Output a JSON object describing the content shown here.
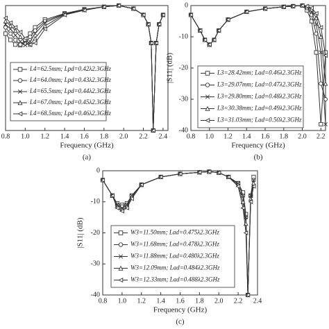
{
  "chart_data": [
    {
      "type": "line",
      "title": "(a)",
      "x_label": "Frequency (GHz)",
      "xlim": [
        0.8,
        2.45
      ],
      "ylim": [
        -40,
        0
      ],
      "xticks": [
        0.8,
        {
          "value": 1,
          "label": "1.0"
        },
        1.2,
        1.4,
        1.6,
        1.8,
        {
          "value": 2,
          "label": "2.0"
        },
        2.2,
        2.4
      ],
      "x": [
        0.8,
        0.85,
        0.9,
        0.95,
        1.0,
        1.05,
        1.1,
        1.2,
        1.4,
        1.6,
        1.8,
        1.95,
        2.1,
        2.2,
        2.25,
        2.28,
        2.3,
        2.33,
        2.36,
        2.4
      ],
      "series": [
        {
          "name": "L4=62.5mm; Lpd=0.42λ2.3GHz",
          "marker": "square",
          "color": "#333333",
          "values": [
            -9,
            -11,
            -12.5,
            -12.7,
            -11,
            -9,
            -7,
            -4.5,
            -2.5,
            -1.2,
            -0.4,
            0,
            -1,
            -3,
            -6,
            -12,
            -40,
            -12,
            -6,
            -3
          ]
        },
        {
          "name": "L4=64.0mm; Lpd=0.43λ2.3GHz",
          "marker": "circle",
          "color": "#333333",
          "values": [
            -7,
            -9,
            -11,
            -12.5,
            -12,
            -10,
            -8,
            -5,
            -2.6,
            -1.3,
            -0.4,
            0,
            -1,
            -3,
            -6,
            -12,
            -40,
            -12,
            -6,
            -3
          ]
        },
        {
          "name": "L4=65.5mm; Lpd=0.44λ2.3GHz",
          "marker": "x",
          "color": "#333333",
          "values": [
            -6,
            -7.5,
            -9.5,
            -11.5,
            -12.7,
            -11.5,
            -9,
            -5.5,
            -2.7,
            -1.3,
            -0.4,
            0,
            -1,
            -3,
            -6,
            -12,
            -40,
            -12,
            -6,
            -3
          ]
        },
        {
          "name": "L4=67.0mm; Lpd=0.45λ2.3GHz",
          "marker": "triangle-up",
          "color": "#333333",
          "values": [
            -5,
            -6.5,
            -8,
            -10,
            -12,
            -12.5,
            -10.5,
            -6.5,
            -2.8,
            -1.4,
            -0.4,
            0,
            -1,
            -3,
            -6,
            -12,
            -40,
            -12,
            -6,
            -3
          ]
        },
        {
          "name": "L4=68.5mm; Lpd=0.46λ2.3GHz",
          "marker": "triangle-left",
          "color": "#333333",
          "values": [
            -4,
            -5.5,
            -7,
            -8.5,
            -10.5,
            -12.5,
            -12,
            -7.5,
            -3,
            -1.5,
            -0.4,
            0,
            -1,
            -3,
            -6,
            -12,
            -40,
            -12,
            -6,
            -3
          ]
        }
      ]
    },
    {
      "type": "line",
      "title": "(b)",
      "x_label": "Frequency (GHz)",
      "y_label": "|S11| (dB)",
      "xlim": [
        0.8,
        2.25
      ],
      "ylim": [
        -40,
        0
      ],
      "xticks": [
        0.8,
        {
          "value": 1,
          "label": "1.0"
        },
        1.2,
        1.4,
        1.6,
        1.8,
        {
          "value": 2,
          "label": "2.0"
        },
        2.2
      ],
      "yticks": [
        0,
        -10,
        -20,
        -30,
        -40
      ],
      "x": [
        0.8,
        0.9,
        0.95,
        1.0,
        1.05,
        1.1,
        1.2,
        1.4,
        1.6,
        1.8,
        1.9,
        2.0,
        2.05,
        2.1,
        2.15,
        2.2,
        2.25
      ],
      "series": [
        {
          "name": "L3=28.42mm; Lad=0.46λ2.3GHz",
          "marker": "square",
          "color": "#333333",
          "values": [
            -3,
            -8,
            -11,
            -12.5,
            -11,
            -8,
            -4.5,
            -2,
            -1,
            -0.4,
            -0.2,
            0,
            -1.5,
            -5,
            -15,
            -38,
            -15
          ]
        },
        {
          "name": "L3=29.07mm; Lad=0.47λ2.3GHz",
          "marker": "circle",
          "color": "#333333",
          "values": [
            -3,
            -8,
            -11,
            -12.5,
            -11,
            -8,
            -4.5,
            -2,
            -1,
            -0.4,
            -0.2,
            0,
            -0.8,
            -3,
            -9,
            -25,
            -30
          ]
        },
        {
          "name": "L3=29.80mm; Lad=0.48λ2.3GHz",
          "marker": "x",
          "color": "#333333",
          "values": [
            -3,
            -8,
            -11,
            -12.5,
            -11,
            -8,
            -4.5,
            -2,
            -1,
            -0.4,
            -0.2,
            0,
            -0.5,
            -2,
            -6,
            -15,
            -38
          ]
        },
        {
          "name": "L3=30.38mm; Lad=0.49λ2.3GHz",
          "marker": "triangle-up",
          "color": "#333333",
          "values": [
            -3,
            -8,
            -11,
            -12.5,
            -11,
            -8,
            -4.5,
            -2,
            -1,
            -0.4,
            -0.2,
            0,
            -0.3,
            -1.2,
            -4,
            -10,
            -25
          ]
        },
        {
          "name": "L3=31.03mm; Lad=0.50λ2.3GHz",
          "marker": "triangle-left",
          "color": "#333333",
          "values": [
            -3,
            -8,
            -11,
            -12.5,
            -11,
            -8,
            -4.5,
            -2,
            -1,
            -0.4,
            -0.2,
            0,
            -0.2,
            -0.8,
            -2.5,
            -7,
            -16
          ]
        }
      ]
    },
    {
      "type": "line",
      "title": "(c)",
      "x_label": "Frequency (GHz)",
      "y_label": "|S11| (dB)",
      "xlim": [
        0.8,
        2.4
      ],
      "ylim": [
        -40,
        0
      ],
      "xticks": [
        0.8,
        {
          "value": 1,
          "label": "1.0"
        },
        1.2,
        1.4,
        1.6,
        1.8,
        {
          "value": 2,
          "label": "2.0"
        },
        2.2,
        2.4
      ],
      "yticks": [
        0,
        -10,
        -20,
        -30,
        -40
      ],
      "x": [
        0.8,
        0.9,
        0.95,
        1.0,
        1.05,
        1.1,
        1.2,
        1.4,
        1.6,
        1.8,
        1.9,
        2.0,
        2.1,
        2.2,
        2.25,
        2.28,
        2.3,
        2.33,
        2.36
      ],
      "series": [
        {
          "name": "W3=11.50mm; Lad=0.475λ2.3GHz",
          "marker": "square",
          "color": "#333333",
          "values": [
            -3,
            -8,
            -10.5,
            -11,
            -10.5,
            -8,
            -4.5,
            -2,
            -1,
            -0.5,
            -0.3,
            -0.6,
            -2,
            -4,
            -7,
            -14,
            -40,
            -8,
            -2
          ]
        },
        {
          "name": "W3=11.68mm; Lad=0.478λ2.3GHz",
          "marker": "circle",
          "color": "#333333",
          "values": [
            -3,
            -8,
            -11,
            -11.5,
            -11,
            -8,
            -4.5,
            -2,
            -1,
            -0.5,
            -0.3,
            -0.6,
            -2,
            -4,
            -8,
            -15,
            -40,
            -8,
            -3
          ]
        },
        {
          "name": "W3=11.88mm; Lad=0.480λ2.3GHz",
          "marker": "x",
          "color": "#333333",
          "values": [
            -3,
            -8,
            -11,
            -12,
            -11,
            -8,
            -4.5,
            -2,
            -1,
            -0.5,
            -0.3,
            -0.6,
            -2,
            -4,
            -8,
            -15,
            -40,
            -8,
            -3
          ]
        },
        {
          "name": "W3=12.09mm; Lad=0.484λ2.3GHz",
          "marker": "triangle-up",
          "color": "#333333",
          "values": [
            -3,
            -8,
            -11.5,
            -12.5,
            -11.5,
            -8.5,
            -4.5,
            -2,
            -1,
            -0.5,
            -0.3,
            -0.6,
            -2,
            -4.5,
            -10,
            -17,
            -40,
            -9,
            -4
          ]
        },
        {
          "name": "W3=12.33mm; Lad=0.488λ2.3GHz",
          "marker": "triangle-left",
          "color": "#333333",
          "values": [
            -3,
            -8,
            -12,
            -13,
            -12,
            -9,
            -4.5,
            -2,
            -1,
            -0.5,
            -0.3,
            -0.6,
            -2,
            -5,
            -12,
            -20,
            -40,
            -10,
            -5
          ]
        }
      ]
    }
  ]
}
